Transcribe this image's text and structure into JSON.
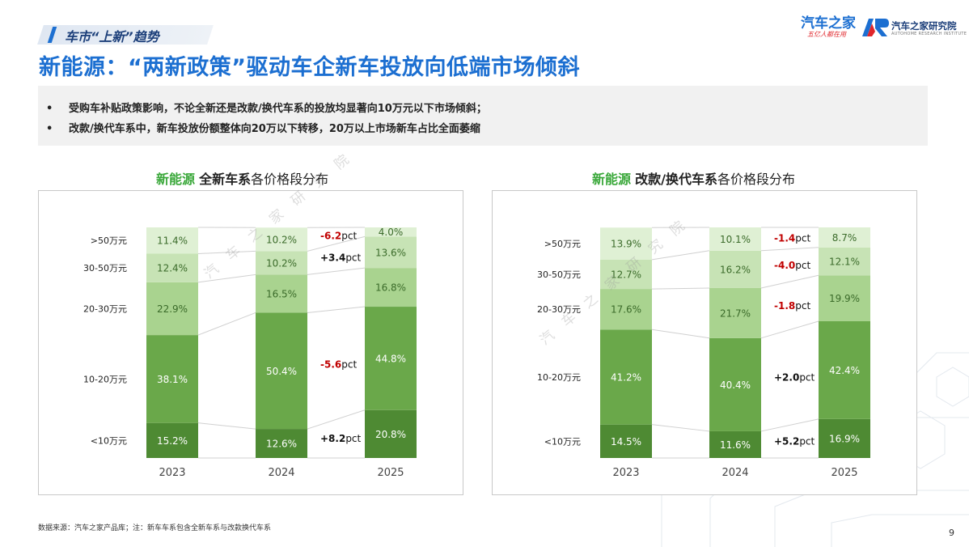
{
  "section": {
    "label": "车市“上新”趋势"
  },
  "title": "新能源：“两新政策”驱动车企新车投放向低端市场倾斜",
  "logos": {
    "autohome": "汽车之家",
    "autohome_slogan": "五亿人都在用",
    "research": "汽车之家研究院",
    "research_en": "AUTOHOME RESEARCH INSTITUTE"
  },
  "watermark": "汽车之家研究院",
  "bullets": [
    "受购车补贴政策影响，不论全新还是改款/换代车系的投放均显著向10万元以下市场倾斜；",
    "改款/换代车系中，新车投放份额整体向20万以下转移，20万以上市场新车占比全面萎缩"
  ],
  "colors": {
    "title_blue": "#1c6fd1",
    "green_highlight": "#3aa83a",
    "bar_lt10": "#4e8a33",
    "bar_10_20": "#6aa84a",
    "bar_20_30": "#a9d38f",
    "bar_30_50": "#c7e3b5",
    "bar_gt50": "#dff0d4",
    "neg_delta": "#c00000",
    "pos_delta": "#111111"
  },
  "chart_data": [
    {
      "type": "bar",
      "stacked": true,
      "title": {
        "part1": "新能源",
        "part2": "全新车系",
        "part3": "各价格段分布"
      },
      "categories": [
        "2023",
        "2024",
        "2025"
      ],
      "series": [
        {
          "name": "<10万元",
          "values": [
            15.2,
            12.6,
            20.8
          ]
        },
        {
          "name": "10-20万元",
          "values": [
            38.1,
            50.4,
            44.8
          ]
        },
        {
          "name": "20-30万元",
          "values": [
            22.9,
            16.5,
            16.8
          ]
        },
        {
          "name": "30-50万元",
          "values": [
            12.4,
            10.2,
            13.6
          ]
        },
        {
          "name": ">50万元",
          "values": [
            11.4,
            10.2,
            4.0
          ]
        }
      ],
      "ylim": [
        0,
        100
      ],
      "annotations": [
        {
          "series": ">50万元",
          "text": "-6.2",
          "unit": "pct",
          "sign": "neg"
        },
        {
          "series": "30-50万元",
          "text": "+3.4",
          "unit": "pct",
          "sign": "pos"
        },
        {
          "series": "10-20万元",
          "text": "-5.6",
          "unit": "pct",
          "sign": "neg"
        },
        {
          "series": "<10万元",
          "text": "+8.2",
          "unit": "pct",
          "sign": "pos"
        }
      ]
    },
    {
      "type": "bar",
      "stacked": true,
      "title": {
        "part1": "新能源",
        "part2": "改款/换代车系",
        "part3": "各价格段分布"
      },
      "categories": [
        "2023",
        "2024",
        "2025"
      ],
      "series": [
        {
          "name": "<10万元",
          "values": [
            14.5,
            11.6,
            16.9
          ]
        },
        {
          "name": "10-20万元",
          "values": [
            41.2,
            40.4,
            42.4
          ]
        },
        {
          "name": "20-30万元",
          "values": [
            17.6,
            21.7,
            19.9
          ]
        },
        {
          "name": "30-50万元",
          "values": [
            12.7,
            16.2,
            12.1
          ]
        },
        {
          "name": ">50万元",
          "values": [
            13.9,
            10.1,
            8.7
          ]
        }
      ],
      "ylim": [
        0,
        100
      ],
      "annotations": [
        {
          "series": ">50万元",
          "text": "-1.4",
          "unit": "pct",
          "sign": "neg"
        },
        {
          "series": "30-50万元",
          "text": "-4.0",
          "unit": "pct",
          "sign": "neg"
        },
        {
          "series": "20-30万元",
          "text": "-1.8",
          "unit": "pct",
          "sign": "neg"
        },
        {
          "series": "10-20万元",
          "text": "+2.0",
          "unit": "pct",
          "sign": "pos"
        },
        {
          "series": "<10万元",
          "text": "+5.2",
          "unit": "pct",
          "sign": "pos"
        }
      ]
    }
  ],
  "footnote": "数据来源：汽车之家产品库；注：新车车系包含全新车系与改款换代车系",
  "page_number": "9"
}
